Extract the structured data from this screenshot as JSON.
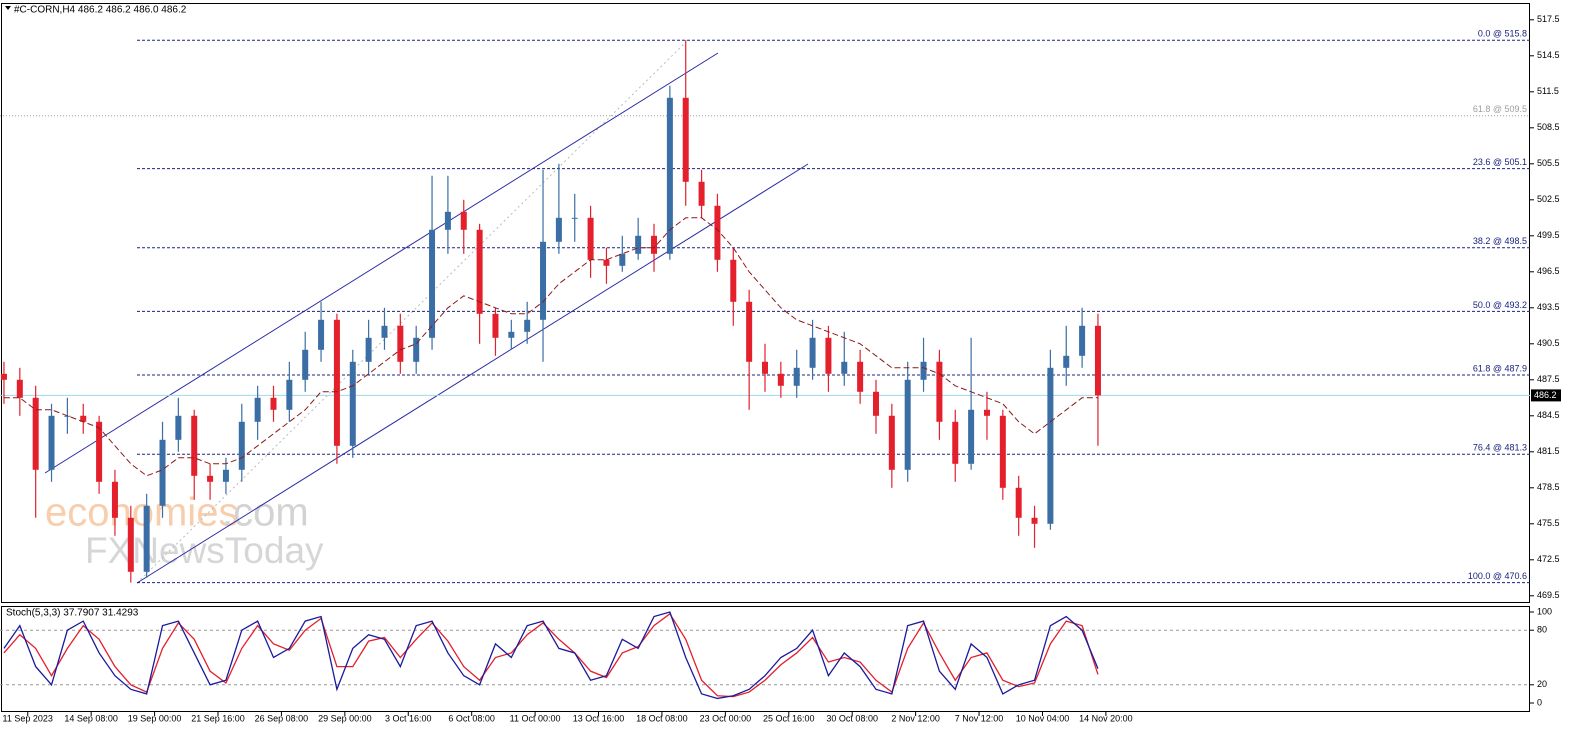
{
  "chart_data": [
    {
      "type": "candlestick",
      "title": "#C-CORN,H4  486.2 486.2 486.0 486.2",
      "x": [
        0,
        4,
        8,
        12,
        16,
        20,
        24,
        28,
        32,
        36,
        40,
        44,
        48,
        52,
        56,
        60,
        64,
        68,
        72,
        76,
        80,
        84,
        88,
        92,
        96,
        100,
        104,
        108,
        112,
        116,
        120,
        124,
        128,
        132,
        136,
        140,
        144,
        148,
        152,
        156,
        160,
        164,
        168,
        172,
        176,
        180,
        184,
        188,
        192,
        196,
        200,
        204,
        208,
        212,
        216,
        220,
        224,
        228,
        232,
        236,
        240,
        244,
        248,
        252,
        256,
        260,
        264,
        268,
        272,
        276
      ],
      "open": [
        488,
        487.5,
        486,
        480,
        484.5,
        484.5,
        484,
        479,
        476,
        471.5,
        477,
        482.5,
        484.5,
        479.5,
        479,
        480,
        484,
        486,
        485,
        487.5,
        490,
        492.5,
        482,
        489,
        491,
        492,
        489,
        491,
        500,
        501.5,
        500,
        493,
        491,
        491.5,
        492.5,
        499,
        501,
        501,
        497.5,
        497,
        498,
        499.5,
        498,
        511,
        504,
        502,
        497.5,
        494,
        489,
        488,
        487,
        488.5,
        491,
        488,
        489,
        486.5,
        484.5,
        480,
        487.5,
        489,
        484,
        480.5,
        485,
        484.5,
        478.5,
        476,
        475.5,
        488.5,
        489.5,
        492
      ],
      "high": [
        489,
        488.5,
        487,
        485.5,
        486,
        485.5,
        484.5,
        480,
        477,
        478,
        484,
        486,
        485,
        480.5,
        481,
        485.5,
        487,
        487,
        489,
        491.5,
        494,
        493,
        490,
        492.5,
        493.5,
        493,
        492,
        504.5,
        504.5,
        502.5,
        500.5,
        493.5,
        492.5,
        494,
        505,
        505.5,
        503,
        502,
        498.5,
        499.5,
        501,
        500.5,
        512,
        515.8,
        505,
        503,
        498.5,
        495,
        490.5,
        489,
        490,
        492.5,
        492,
        491.5,
        490,
        487.5,
        485.5,
        489,
        491,
        490,
        485,
        491,
        486.5,
        485,
        479.5,
        477,
        490,
        492,
        493.5,
        493
      ],
      "low": [
        485.5,
        484.5,
        476,
        479,
        483,
        483,
        478,
        474.5,
        470.6,
        471,
        476,
        481.5,
        477.5,
        477.5,
        478,
        479,
        482.5,
        484,
        484,
        486.5,
        489,
        480.5,
        481,
        488,
        490,
        488,
        488,
        490,
        498,
        498,
        490.5,
        489.5,
        490,
        490.5,
        489,
        498,
        499,
        496,
        495.5,
        496.5,
        497.5,
        496.5,
        497.5,
        502,
        501,
        496.5,
        492,
        485,
        486.5,
        486,
        486,
        487.5,
        486.5,
        487,
        485.5,
        483,
        478.5,
        479,
        486.5,
        482.5,
        479,
        480,
        482.5,
        477.5,
        474.5,
        473.5,
        475,
        487,
        488.5,
        482
      ],
      "close": [
        487.5,
        486,
        480,
        484.5,
        484.5,
        484,
        479,
        476,
        471.5,
        477,
        482.5,
        484.5,
        479.5,
        479,
        480,
        484,
        486,
        485,
        487.5,
        490,
        492.5,
        482,
        489,
        491,
        492,
        489,
        491,
        500,
        501.5,
        500,
        493,
        491,
        491.5,
        492.5,
        499,
        501,
        501,
        497.5,
        497,
        498,
        499.5,
        498,
        511,
        504,
        502,
        497.5,
        494,
        489,
        488,
        487,
        488.5,
        491,
        488,
        489,
        486.5,
        484.5,
        480,
        487.5,
        489,
        484,
        480.5,
        485,
        484.5,
        478.5,
        476,
        475.5,
        488.5,
        489.5,
        492,
        486.2
      ],
      "up_color": "#3a6ea5",
      "down_color": "#e3202c",
      "moving_average": {
        "color": "#8b1a1a",
        "values": [
          486,
          486,
          485,
          485,
          484.5,
          484,
          483.5,
          482,
          480.5,
          479.5,
          480,
          481,
          481,
          480.5,
          480.5,
          481,
          482,
          483,
          484,
          485,
          486.5,
          486.5,
          487,
          488,
          489,
          490,
          490.5,
          492,
          493.5,
          494.5,
          494,
          493.5,
          493,
          493,
          494,
          495.5,
          496.5,
          497.5,
          497.5,
          498,
          498.5,
          498.5,
          500,
          501,
          501,
          500,
          498.5,
          496.5,
          495,
          493.5,
          492.5,
          492,
          491.5,
          491,
          490.5,
          489.5,
          488.5,
          488.5,
          488.5,
          488,
          487,
          486.5,
          486,
          485.5,
          484,
          483,
          484,
          485,
          486,
          486
        ]
      },
      "fib_levels": [
        {
          "label": "0.0 @ 515.8",
          "value": 515.8,
          "color": "#1a237e"
        },
        {
          "label": "61.8 @ 509.5",
          "value": 509.5,
          "color": "#9e9e9e"
        },
        {
          "label": "23.6 @ 505.1",
          "value": 505.1,
          "color": "#1a237e"
        },
        {
          "label": "38.2 @ 498.5",
          "value": 498.5,
          "color": "#1a237e"
        },
        {
          "label": "50.0 @ 493.2",
          "value": 493.2,
          "color": "#1a237e"
        },
        {
          "label": "61.8 @ 487.9",
          "value": 487.9,
          "color": "#1a237e"
        },
        {
          "label": "76.4 @ 481.3",
          "value": 481.3,
          "color": "#1a237e"
        },
        {
          "label": "100.0 @ 470.6",
          "value": 470.6,
          "color": "#1a237e"
        }
      ],
      "last_price": 486.2,
      "xlim": [
        -1,
        385
      ],
      "ylim": [
        468.9,
        518.9
      ],
      "yticks": [
        469.5,
        472.5,
        475.5,
        478.5,
        481.5,
        484.5,
        487.5,
        490.5,
        493.5,
        496.5,
        499.5,
        502.5,
        505.5,
        508.5,
        511.5,
        514.5,
        517.5
      ],
      "xticks": [
        {
          "value": 6,
          "label": "11 Sep 2023"
        },
        {
          "value": 22,
          "label": "14 Sep 08:00"
        },
        {
          "value": 38,
          "label": "19 Sep 00:00"
        },
        {
          "value": 54,
          "label": "21 Sep 16:00"
        },
        {
          "value": 70,
          "label": "26 Sep 08:00"
        },
        {
          "value": 86,
          "label": "29 Sep 00:00"
        },
        {
          "value": 102,
          "label": "3 Oct 16:00"
        },
        {
          "value": 118,
          "label": "6 Oct 08:00"
        },
        {
          "value": 134,
          "label": "11 Oct 00:00"
        },
        {
          "value": 150,
          "label": "13 Oct 16:00"
        },
        {
          "value": 166,
          "label": "18 Oct 08:00"
        },
        {
          "value": 182,
          "label": "23 Oct 00:00"
        },
        {
          "value": 198,
          "label": "25 Oct 16:00"
        },
        {
          "value": 214,
          "label": "30 Oct 08:00"
        },
        {
          "value": 230,
          "label": "2 Nov 12:00"
        },
        {
          "value": 246,
          "label": "7 Nov 12:00"
        },
        {
          "value": 262,
          "label": "10 Nov 04:00"
        },
        {
          "value": 278,
          "label": "14 Nov 20:00"
        }
      ],
      "watermark": [
        "economies",
        ".com",
        "FXNewsToday"
      ]
    },
    {
      "type": "line",
      "title": "Stoch(5,3,3) 37.7907 31.4293",
      "x": [
        0,
        4,
        8,
        12,
        16,
        20,
        24,
        28,
        32,
        36,
        40,
        44,
        48,
        52,
        56,
        60,
        64,
        68,
        72,
        76,
        80,
        84,
        88,
        92,
        96,
        100,
        104,
        108,
        112,
        116,
        120,
        124,
        128,
        132,
        136,
        140,
        144,
        148,
        152,
        156,
        160,
        164,
        168,
        172,
        176,
        180,
        184,
        188,
        192,
        196,
        200,
        204,
        208,
        212,
        216,
        220,
        224,
        228,
        232,
        236,
        240,
        244,
        248,
        252,
        256,
        260,
        264,
        268,
        272,
        276
      ],
      "series": [
        {
          "color": "#1a1a9c",
          "values": [
            60,
            85,
            40,
            20,
            80,
            90,
            55,
            30,
            15,
            10,
            85,
            90,
            55,
            20,
            25,
            80,
            90,
            50,
            60,
            90,
            95,
            15,
            60,
            75,
            70,
            40,
            85,
            90,
            55,
            30,
            20,
            65,
            50,
            85,
            90,
            60,
            55,
            25,
            30,
            70,
            60,
            95,
            100,
            50,
            10,
            5,
            8,
            15,
            30,
            50,
            60,
            80,
            30,
            55,
            40,
            15,
            10,
            85,
            90,
            35,
            15,
            65,
            50,
            10,
            20,
            25,
            85,
            95,
            80,
            37.8
          ]
        },
        {
          "color": "#e3202c",
          "values": [
            55,
            75,
            60,
            30,
            60,
            85,
            70,
            40,
            20,
            12,
            60,
            88,
            70,
            35,
            22,
            60,
            85,
            65,
            58,
            80,
            93,
            40,
            40,
            68,
            72,
            50,
            70,
            88,
            68,
            40,
            25,
            50,
            55,
            75,
            88,
            70,
            55,
            35,
            28,
            55,
            62,
            85,
            98,
            70,
            25,
            8,
            7,
            12,
            25,
            42,
            55,
            72,
            45,
            50,
            45,
            25,
            12,
            60,
            88,
            55,
            25,
            50,
            55,
            25,
            18,
            22,
            65,
            90,
            85,
            31.4
          ]
        }
      ],
      "levels": [
        20,
        80
      ],
      "xlim": [
        -1,
        385
      ],
      "ylim": [
        -9.9,
        106.6
      ],
      "yticks": [
        0,
        20,
        80,
        100
      ]
    }
  ]
}
